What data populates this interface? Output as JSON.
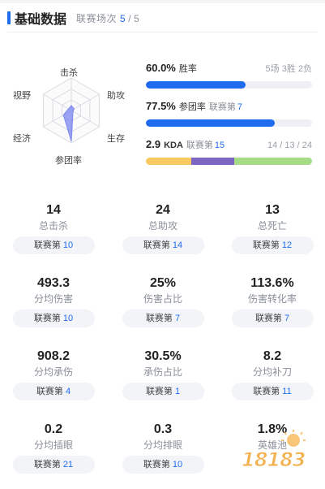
{
  "header": {
    "title": "基础数据",
    "sub_label": "联赛场次",
    "current": "5",
    "total": "5"
  },
  "radar": {
    "labels": [
      "击杀",
      "助攻",
      "生存",
      "参团率",
      "经济",
      "视野"
    ],
    "values": [
      0.15,
      0.1,
      0.06,
      0.95,
      0.28,
      0.1
    ],
    "fill_color": "#7b86f0"
  },
  "winrate": {
    "value": "60.0%",
    "label": "胜率",
    "record": "5场 3胜 2负",
    "fraction": 0.6,
    "color": "#1e6bf0"
  },
  "participation": {
    "value": "77.5%",
    "label": "参团率",
    "rank_label": "联赛第",
    "rank": "7",
    "fraction": 0.775,
    "color": "#1e6bf0"
  },
  "kda": {
    "value": "2.9",
    "label": "KDA",
    "rank_label": "联赛第",
    "rank": "15",
    "breakdown": "14 / 13 / 24",
    "segments": [
      {
        "value": 14,
        "color": "#f7c960"
      },
      {
        "value": 13,
        "color": "#7b66c3"
      },
      {
        "value": 24,
        "color": "#a6dc86"
      }
    ]
  },
  "grid": [
    {
      "value": "14",
      "name": "总击杀",
      "rank_label": "联赛第",
      "rank": "10"
    },
    {
      "value": "24",
      "name": "总助攻",
      "rank_label": "联赛第",
      "rank": "14"
    },
    {
      "value": "13",
      "name": "总死亡",
      "rank_label": "联赛第",
      "rank": "12"
    },
    {
      "value": "493.3",
      "name": "分均伤害",
      "rank_label": "联赛第",
      "rank": "10"
    },
    {
      "value": "25%",
      "name": "伤害占比",
      "rank_label": "联赛第",
      "rank": "7"
    },
    {
      "value": "113.6%",
      "name": "伤害转化率",
      "rank_label": "联赛第",
      "rank": "7"
    },
    {
      "value": "908.2",
      "name": "分均承伤",
      "rank_label": "联赛第",
      "rank": "4"
    },
    {
      "value": "30.5%",
      "name": "承伤占比",
      "rank_label": "联赛第",
      "rank": "1"
    },
    {
      "value": "8.2",
      "name": "分均补刀",
      "rank_label": "联赛第",
      "rank": "11"
    },
    {
      "value": "0.2",
      "name": "分均插眼",
      "rank_label": "联赛第",
      "rank": "21"
    },
    {
      "value": "0.3",
      "name": "分均排眼",
      "rank_label": "联赛第",
      "rank": "10"
    },
    {
      "value": "1.8%",
      "name": "英雄池",
      "rank_label": "联赛第",
      "rank": "—"
    }
  ],
  "watermark": {
    "text": "18183",
    "icon": "sun-icon"
  }
}
